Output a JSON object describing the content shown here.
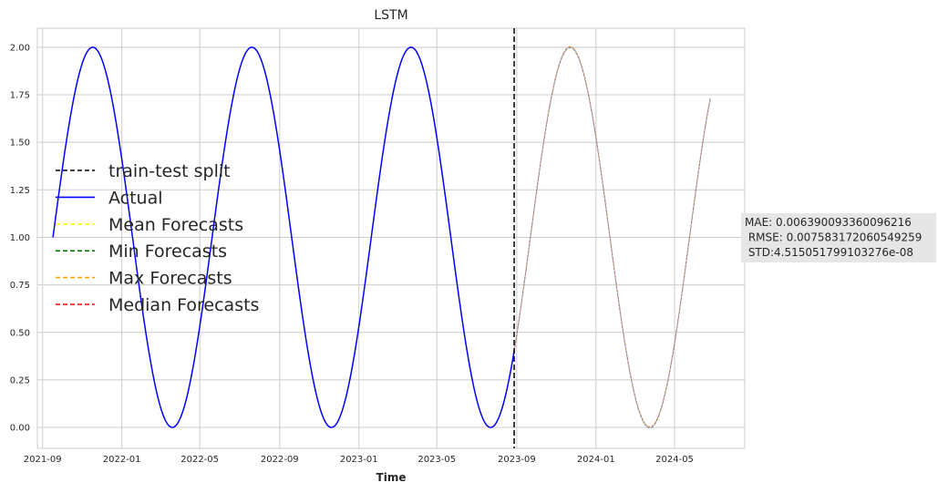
{
  "chart_data": {
    "type": "line",
    "title": "LSTM",
    "xlabel": "Time",
    "ylabel": "",
    "ylim": [
      -0.11,
      2.1
    ],
    "xlim": [
      "2021-08-24",
      "2024-08-17"
    ],
    "grid": true,
    "legend_position": "center-left",
    "x_ticks": [
      "2021-09",
      "2022-01",
      "2022-05",
      "2022-09",
      "2023-01",
      "2023-05",
      "2023-09",
      "2024-01",
      "2024-05"
    ],
    "y_ticks": [
      "0.00",
      "0.25",
      "0.50",
      "0.75",
      "1.00",
      "1.25",
      "1.50",
      "1.75",
      "2.00"
    ],
    "split_date": "2023-08-28",
    "actual_series": {
      "name": "Actual",
      "start": "2021-09-17",
      "end": "2024-06-25",
      "function": "1 + sin(2*pi*(t - 2021-09-17)/245 days)"
    },
    "series": [
      {
        "name": "train-test split",
        "color": "#000000",
        "style": "dashed"
      },
      {
        "name": "Actual",
        "color": "#0000ff",
        "style": "solid"
      },
      {
        "name": "Mean Forecasts",
        "color": "#ffff00",
        "style": "dashed"
      },
      {
        "name": "Min Forecasts",
        "color": "#008000",
        "style": "dashed"
      },
      {
        "name": "Max Forecasts",
        "color": "#ffa500",
        "style": "dashed"
      },
      {
        "name": "Median Forecasts",
        "color": "#ff0000",
        "style": "dashed"
      }
    ],
    "annotation": {
      "lines": [
        "MAE: 0.006390093360096216",
        " RMSE: 0.007583172060549259",
        " STD:4.515051799103276e-08"
      ]
    }
  }
}
